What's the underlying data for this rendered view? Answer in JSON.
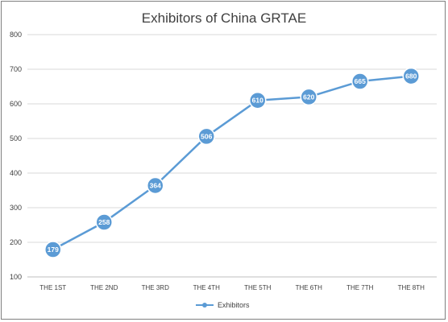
{
  "chart_data": {
    "type": "line",
    "title": "Exhibitors of China GRTAE",
    "xlabel": "",
    "ylabel": "",
    "categories": [
      "THE 1ST",
      "THE 2ND",
      "THE 3RD",
      "THE 4TH",
      "THE 5TH",
      "THE 6TH",
      "THE 7TH",
      "THE 8TH"
    ],
    "series": [
      {
        "name": "Exhibitors",
        "values": [
          179,
          258,
          364,
          506,
          610,
          620,
          665,
          680
        ],
        "color": "#5b9bd5"
      }
    ],
    "ylim": [
      100,
      800
    ],
    "yticks": [
      100,
      200,
      300,
      400,
      500,
      600,
      700,
      800
    ],
    "grid": true,
    "legend": "bottom",
    "data_labels": true,
    "marker": "circle"
  }
}
